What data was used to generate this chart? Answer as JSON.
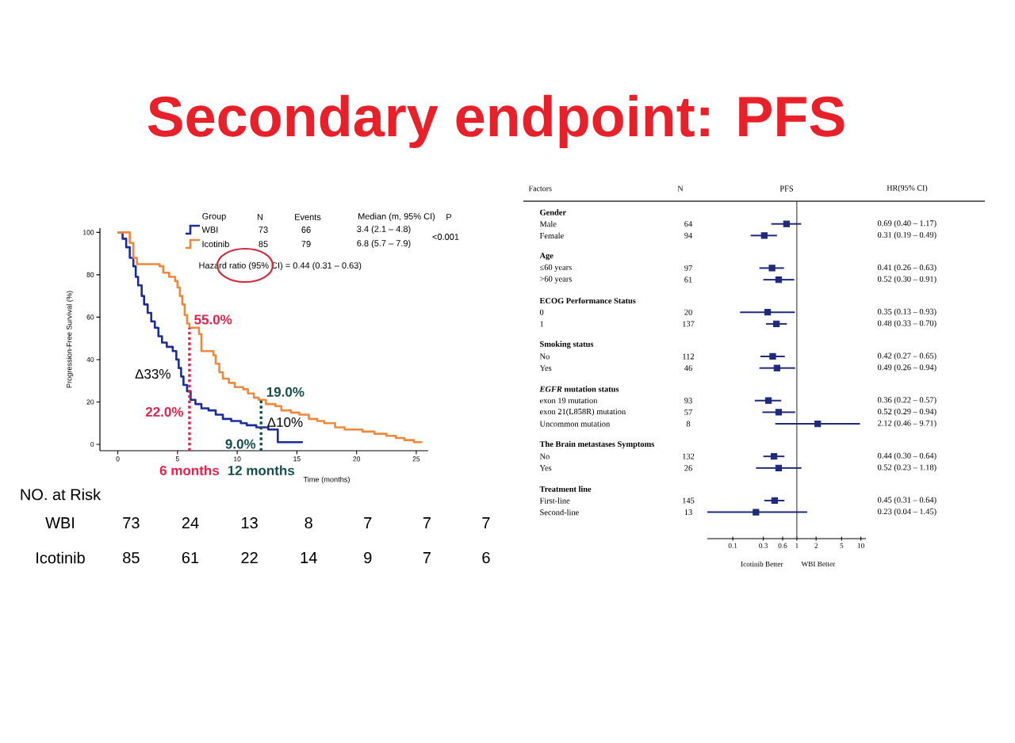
{
  "chart_data": [
    {
      "type": "step",
      "title": "Secondary endpoint: PFS",
      "xlabel": "Time (months)",
      "ylabel": "Progression-Free Survival (%)",
      "legend_title": "Group",
      "legend": "top left",
      "xlim": [
        -1.5,
        26
      ],
      "ylim": [
        -3,
        102
      ],
      "xticks": [
        0,
        5,
        10,
        15,
        20,
        25
      ],
      "yticks": [
        0,
        20,
        40,
        60,
        80,
        100
      ],
      "series": [
        {
          "name": "WBI",
          "color": "#1c2c9c",
          "x": [
            0,
            0.4,
            0.7,
            1.0,
            1.3,
            1.5,
            1.7,
            2.0,
            2.2,
            2.5,
            2.8,
            3.1,
            3.4,
            3.7,
            4.1,
            4.6,
            4.9,
            5.1,
            5.3,
            5.5,
            5.8,
            6.1,
            6.5,
            7.0,
            7.6,
            8.2,
            8.8,
            9.5,
            10.3,
            10.8,
            11.6,
            12.6,
            13.4,
            15.5
          ],
          "values": [
            100,
            97,
            93,
            88,
            84,
            79,
            75,
            70,
            66,
            62,
            58,
            55,
            51,
            48,
            46,
            44,
            40,
            36,
            32,
            28,
            25,
            21,
            19,
            17,
            16,
            14,
            12,
            11,
            10,
            9,
            8,
            7,
            1,
            1
          ]
        },
        {
          "name": "Icotinib",
          "color": "#f0883c",
          "x": [
            0,
            1.0,
            1.3,
            1.6,
            3.5,
            3.8,
            4.3,
            4.8,
            5.0,
            5.2,
            5.4,
            5.6,
            5.8,
            6.0,
            6.8,
            7.0,
            8.0,
            8.2,
            8.5,
            8.8,
            9.3,
            9.8,
            10.5,
            10.9,
            11.4,
            11.8,
            12.4,
            13.2,
            13.7,
            14.5,
            15.2,
            16.0,
            16.7,
            17.3,
            18.2,
            19.0,
            20.5,
            21.5,
            22.5,
            23.3,
            24.0,
            24.8,
            25.5
          ],
          "values": [
            100,
            95,
            88,
            85,
            84,
            81,
            79,
            77,
            74,
            70,
            66,
            61,
            57,
            55,
            52,
            44,
            42,
            38,
            34,
            31,
            29,
            27,
            26,
            24,
            22,
            21,
            19,
            18,
            16,
            15,
            14,
            12,
            11,
            10,
            8,
            7,
            6,
            5,
            4,
            3,
            2,
            1,
            1
          ]
        }
      ],
      "ref_lines": [
        {
          "axis": "x",
          "value": 6,
          "label": "6 months",
          "color": "#e8204a",
          "line_style": "dotted"
        },
        {
          "axis": "x",
          "value": 12,
          "label": "12 months",
          "color": "#15504c",
          "line_style": "dotted"
        }
      ],
      "annotations": [
        "N",
        "Events",
        "Median (m, 95% CI)",
        "P",
        "73",
        "66",
        "3.4 (2.1 – 4.8)",
        "85",
        "79",
        "6.8 (5.7 – 7.9)",
        "<0.001",
        "Hazard ratio (95% CI) = 0.44 (0.31 – 0.63)",
        "55.0%",
        "22.0%",
        "19.0%",
        "9.0%",
        "Δ33%",
        "Δ10%"
      ]
    },
    {
      "type": "other",
      "title": "NO. at Risk",
      "annotations": [
        "WBI",
        "73",
        "24",
        "13",
        "8",
        "7",
        "7",
        "7",
        "Icotinib",
        "85",
        "61",
        "22",
        "14",
        "9",
        "7",
        "6"
      ]
    },
    {
      "type": "scatter",
      "orientation": "horizontal",
      "title": "PFS",
      "categories": [
        "Gender",
        "Male",
        "Female",
        "Age",
        "≤60 years",
        ">60 years",
        "ECOG Performance Status",
        "0",
        "1",
        "Smoking status",
        "No",
        "Yes",
        "*EGFR* mutation status",
        "exon 19 mutation",
        "exon 21(L858R) mutation",
        "Uncommon mutation",
        "The Brain metastases Symptoms",
        "No",
        "Yes",
        "Treatment line",
        "First-line",
        "Second-line"
      ],
      "values": [
        null,
        0.69,
        0.31,
        null,
        0.41,
        0.52,
        null,
        0.35,
        0.48,
        null,
        0.42,
        0.49,
        null,
        0.36,
        0.52,
        2.12,
        null,
        0.44,
        0.52,
        null,
        0.45,
        0.23
      ],
      "errors": [
        null,
        [
          0.4,
          1.17
        ],
        [
          0.19,
          0.49
        ],
        null,
        [
          0.26,
          0.63
        ],
        [
          0.3,
          0.91
        ],
        null,
        [
          0.13,
          0.93
        ],
        [
          0.33,
          0.7
        ],
        null,
        [
          0.27,
          0.65
        ],
        [
          0.26,
          0.94
        ],
        null,
        [
          0.22,
          0.57
        ],
        [
          0.29,
          0.94
        ],
        [
          0.46,
          9.71
        ],
        null,
        [
          0.3,
          0.64
        ],
        [
          0.23,
          1.18
        ],
        null,
        [
          0.31,
          0.64
        ],
        [
          0.04,
          1.45
        ]
      ],
      "value_labels": [
        null,
        "0.69 (0.40 – 1.17)",
        "0.31 (0.19 – 0.49)",
        null,
        "0.41 (0.26 – 0.63)",
        "0.52 (0.30 – 0.91)",
        null,
        "0.35 (0.13 – 0.93)",
        "0.48 (0.33 – 0.70)",
        null,
        "0.42 (0.27 – 0.65)",
        "0.49 (0.26 – 0.94)",
        null,
        "0.36 (0.22 – 0.57)",
        "0.52 (0.29 – 0.94)",
        "2.12 (0.46 – 9.71)",
        null,
        "0.44 (0.30 – 0.64)",
        "0.52 (0.23 – 1.18)",
        null,
        "0.45 (0.31 – 0.64)",
        "0.23 (0.04 – 1.45)"
      ],
      "y2_categories": [
        null,
        "64",
        "94",
        null,
        "97",
        "61",
        null,
        "20",
        "137",
        null,
        "112",
        "46",
        null,
        "93",
        "57",
        "8",
        null,
        "132",
        "26",
        null,
        "145",
        "13"
      ],
      "color": "#1f2a7a",
      "marker": "square",
      "log": "x",
      "xlim": [
        0.04,
        12
      ],
      "xticks": [
        0.1,
        0.3,
        0.6,
        1,
        2,
        5,
        10
      ],
      "ref_lines": [
        {
          "axis": "x",
          "value": 1
        }
      ],
      "annotations": [
        "Factors",
        "N",
        "HR(95% CI)",
        "Icotinib Better",
        "WBI Better"
      ]
    }
  ]
}
